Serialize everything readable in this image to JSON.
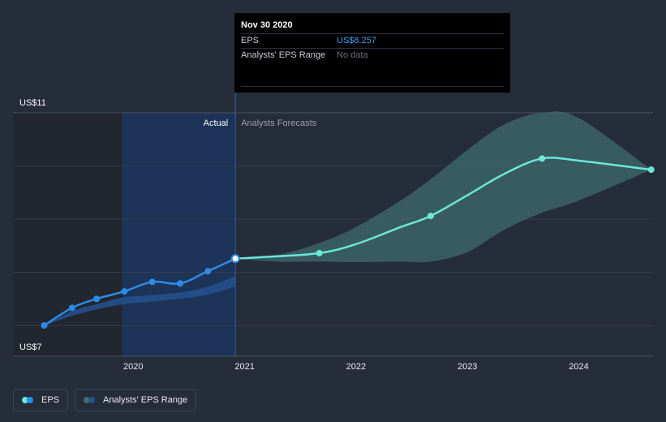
{
  "tooltip": {
    "date": "Nov 30 2020",
    "eps_label": "EPS",
    "eps_value": "US$8.257",
    "range_label": "Analysts' EPS Range",
    "range_value": "No data"
  },
  "labels": {
    "actual": "Actual",
    "forecast": "Analysts Forecasts"
  },
  "legend": {
    "eps": "EPS",
    "range": "Analysts' EPS Range"
  },
  "colors": {
    "background": "#262d3a",
    "actual_line": "#2d8be6",
    "forecast_line": "#6be8d6",
    "forecast_band": "#3f6b6f",
    "actual_band": "#25508c",
    "actual_region": "#1d3357"
  },
  "chart_data": {
    "type": "line",
    "title": "",
    "xlabel": "",
    "ylabel": "",
    "ylim": [
      7,
      11
    ],
    "y_ticks": [
      "US$11",
      "US$7"
    ],
    "x_ticks": [
      {
        "label": "2020",
        "x": 2020.0
      },
      {
        "label": "2021",
        "x": 2021.0
      },
      {
        "label": "2022",
        "x": 2022.0
      },
      {
        "label": "2023",
        "x": 2023.0
      },
      {
        "label": "2024",
        "x": 2024.0
      }
    ],
    "xlim": [
      2018.9,
      2024.65
    ],
    "split_x": 2020.917,
    "series": [
      {
        "name": "EPS",
        "kind": "actual",
        "x": [
          2019.2,
          2019.45,
          2019.67,
          2019.92,
          2020.17,
          2020.42,
          2020.67,
          2020.917
        ],
        "values": [
          7.0,
          7.33,
          7.5,
          7.64,
          7.82,
          7.79,
          8.02,
          8.257
        ],
        "markers": true
      },
      {
        "name": "Analysts' EPS Range",
        "kind": "actual_range",
        "x": [
          2019.2,
          2019.45,
          2019.67,
          2019.92,
          2020.17,
          2020.42,
          2020.67,
          2020.917
        ],
        "low": [
          7.0,
          7.18,
          7.3,
          7.4,
          7.45,
          7.5,
          7.58,
          7.73
        ],
        "high": [
          7.0,
          7.27,
          7.4,
          7.53,
          7.57,
          7.62,
          7.73,
          7.93
        ]
      },
      {
        "name": "EPS",
        "kind": "forecast",
        "x": [
          2020.917,
          2021.2,
          2021.67,
          2022.0,
          2022.4,
          2022.67,
          2023.0,
          2023.33,
          2023.67,
          2024.0,
          2024.65
        ],
        "values": [
          8.257,
          8.29,
          8.36,
          8.53,
          8.85,
          9.06,
          9.45,
          9.85,
          10.14,
          10.1,
          9.93
        ],
        "marker_x": [
          2021.67,
          2022.67,
          2023.67,
          2024.65
        ]
      },
      {
        "name": "Analysts' EPS Range",
        "kind": "forecast_range",
        "x": [
          2020.917,
          2021.3,
          2021.67,
          2022.0,
          2022.4,
          2022.67,
          2023.0,
          2023.33,
          2023.67,
          2024.0,
          2024.65
        ],
        "low": [
          8.257,
          8.2,
          8.2,
          8.19,
          8.2,
          8.2,
          8.38,
          8.8,
          9.12,
          9.35,
          9.93
        ],
        "high": [
          8.257,
          8.33,
          8.55,
          8.85,
          9.35,
          9.75,
          10.3,
          10.78,
          11.0,
          10.9,
          9.93
        ]
      }
    ]
  }
}
